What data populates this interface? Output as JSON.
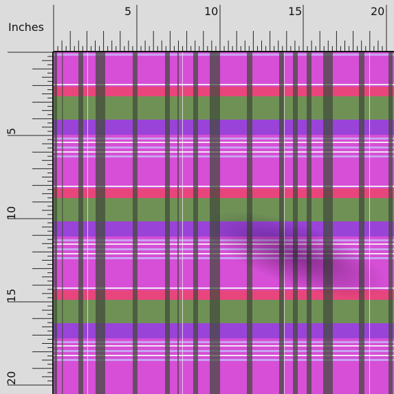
{
  "ruler": {
    "unit_label": "Inches",
    "top_numbers": [
      "5",
      "10",
      "15",
      "20"
    ],
    "left_numbers": [
      "5",
      "10",
      "15",
      "20"
    ]
  },
  "fabric": {
    "colors": {
      "magenta": "#d64fd6",
      "pink_stripe": "#e8457d",
      "green": "#6f9156",
      "purple": "#9a43d8",
      "lavender": "#c9a3f0",
      "dark_stripe": "#3e4a3a",
      "white": "#f2e6f2"
    }
  }
}
